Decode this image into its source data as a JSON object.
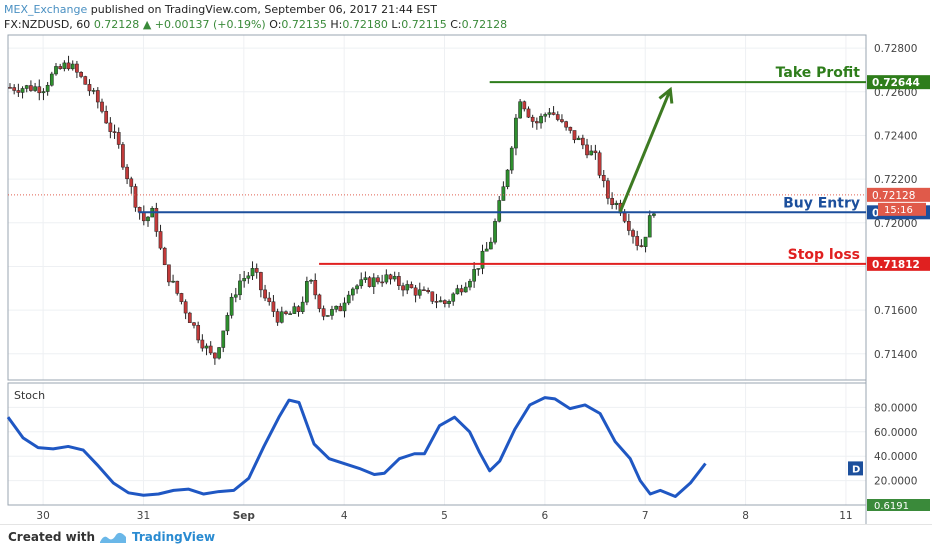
{
  "header": {
    "publisher": "MEX_Exchange",
    "published_text": "published on TradingView.com, September 06, 2017 21:44 EST",
    "symbol": "FX:NZDUSD, 60",
    "last": "0.72128",
    "change": "+0.00137 (+0.19%)",
    "open_label": "O:",
    "open": "0.72135",
    "high_label": "H:",
    "high": "0.72180",
    "low_label": "L:",
    "low": "0.72115",
    "close_label": "C:",
    "close": "0.72128"
  },
  "footer": {
    "created_with": "Created with",
    "brand": "TradingView"
  },
  "chart_data": [
    {
      "type": "candlestick",
      "ylim": [
        0.7128,
        0.7286
      ],
      "y_ticks": [
        "0.72800",
        "0.72600",
        "0.72400",
        "0.72200",
        "0.72000",
        "0.71800",
        "0.71600",
        "0.71400"
      ],
      "y_tick_values": [
        0.728,
        0.726,
        0.724,
        0.722,
        0.72,
        0.718,
        0.716,
        0.714
      ],
      "x_ticks": [
        "30",
        "31",
        "Sep",
        "4",
        "5",
        "6",
        "7",
        "8",
        "11"
      ],
      "x_tick_values": [
        0,
        1,
        2,
        3,
        4,
        5,
        6,
        7,
        8
      ],
      "xlim": [
        -0.35,
        8.2
      ],
      "price_path": [
        [
          0.0,
          0.7262
        ],
        [
          0.1,
          0.7268
        ],
        [
          0.25,
          0.7273
        ],
        [
          0.4,
          0.7265
        ],
        [
          0.55,
          0.7255
        ],
        [
          0.75,
          0.7235
        ],
        [
          0.9,
          0.7212
        ],
        [
          1.0,
          0.7201
        ],
        [
          1.1,
          0.7205
        ],
        [
          1.2,
          0.718
        ],
        [
          1.4,
          0.7162
        ],
        [
          1.55,
          0.7148
        ],
        [
          1.7,
          0.7137
        ],
        [
          1.85,
          0.716
        ],
        [
          1.95,
          0.7173
        ],
        [
          2.1,
          0.7178
        ],
        [
          2.2,
          0.7166
        ],
        [
          2.35,
          0.7156
        ],
        [
          2.55,
          0.716
        ],
        [
          2.65,
          0.7174
        ],
        [
          2.8,
          0.7158
        ],
        [
          2.95,
          0.716
        ],
        [
          3.05,
          0.717
        ],
        [
          3.25,
          0.7173
        ],
        [
          3.4,
          0.7175
        ],
        [
          3.6,
          0.7171
        ],
        [
          3.8,
          0.7167
        ],
        [
          4.0,
          0.7163
        ],
        [
          4.15,
          0.717
        ],
        [
          4.3,
          0.7178
        ],
        [
          4.45,
          0.719
        ],
        [
          4.6,
          0.7218
        ],
        [
          4.75,
          0.7258
        ],
        [
          4.9,
          0.7245
        ],
        [
          5.05,
          0.7252
        ],
        [
          5.2,
          0.7243
        ],
        [
          5.35,
          0.7237
        ],
        [
          5.5,
          0.723
        ],
        [
          5.62,
          0.7212
        ],
        [
          5.75,
          0.7207
        ],
        [
          5.85,
          0.7198
        ],
        [
          5.95,
          0.7188
        ],
        [
          6.05,
          0.7202
        ],
        [
          6.12,
          0.7211
        ]
      ],
      "current_price": {
        "label": "0.72128",
        "value": 0.72128
      },
      "countdown": "15:16",
      "levels": [
        {
          "name": "Take Profit",
          "value": 0.72644,
          "label": "0.72644",
          "color": "#2e7d1b",
          "x_start": 4.45
        },
        {
          "name": "Buy Entry",
          "value": 0.72048,
          "label": "0",
          "color": "#1c4f9c",
          "x_start": 0.95
        },
        {
          "name": "Stop loss",
          "value": 0.71812,
          "label": "0.71812",
          "color": "#e02020",
          "x_start": 2.75
        }
      ],
      "arrow": {
        "from": [
          5.75,
          0.7205
        ],
        "to": [
          6.25,
          0.7261
        ],
        "color": "#3d7a22"
      }
    },
    {
      "type": "line",
      "title": "Stoch",
      "ylim": [
        0,
        100
      ],
      "y_ticks": [
        "80.0000",
        "60.0000",
        "40.0000",
        "20.0000"
      ],
      "y_tick_values": [
        80,
        60,
        40,
        20
      ],
      "bottom_label": "0.6191",
      "badge": "D",
      "series": [
        {
          "values": [
            [
              -0.35,
              72
            ],
            [
              -0.2,
              55
            ],
            [
              -0.05,
              47
            ],
            [
              0.1,
              46
            ],
            [
              0.25,
              48
            ],
            [
              0.4,
              45
            ],
            [
              0.55,
              32
            ],
            [
              0.7,
              18
            ],
            [
              0.85,
              10
            ],
            [
              1.0,
              8
            ],
            [
              1.15,
              9
            ],
            [
              1.3,
              12
            ],
            [
              1.45,
              13
            ],
            [
              1.6,
              9
            ],
            [
              1.75,
              11
            ],
            [
              1.9,
              12
            ],
            [
              2.05,
              22
            ],
            [
              2.2,
              48
            ],
            [
              2.35,
              72
            ],
            [
              2.45,
              86
            ],
            [
              2.55,
              84
            ],
            [
              2.7,
              50
            ],
            [
              2.85,
              38
            ],
            [
              3.0,
              34
            ],
            [
              3.15,
              30
            ],
            [
              3.3,
              25
            ],
            [
              3.4,
              26
            ],
            [
              3.55,
              38
            ],
            [
              3.7,
              42
            ],
            [
              3.8,
              42
            ],
            [
              3.95,
              65
            ],
            [
              4.1,
              72
            ],
            [
              4.25,
              60
            ],
            [
              4.35,
              43
            ],
            [
              4.45,
              28
            ],
            [
              4.55,
              36
            ],
            [
              4.7,
              62
            ],
            [
              4.85,
              82
            ],
            [
              5.0,
              88
            ],
            [
              5.1,
              87
            ],
            [
              5.25,
              79
            ],
            [
              5.4,
              82
            ],
            [
              5.55,
              75
            ],
            [
              5.7,
              52
            ],
            [
              5.85,
              38
            ],
            [
              5.95,
              20
            ],
            [
              6.05,
              9
            ],
            [
              6.15,
              12
            ],
            [
              6.3,
              7
            ],
            [
              6.45,
              18
            ],
            [
              6.6,
              34
            ]
          ],
          "color": "#1f57c3"
        }
      ]
    }
  ]
}
